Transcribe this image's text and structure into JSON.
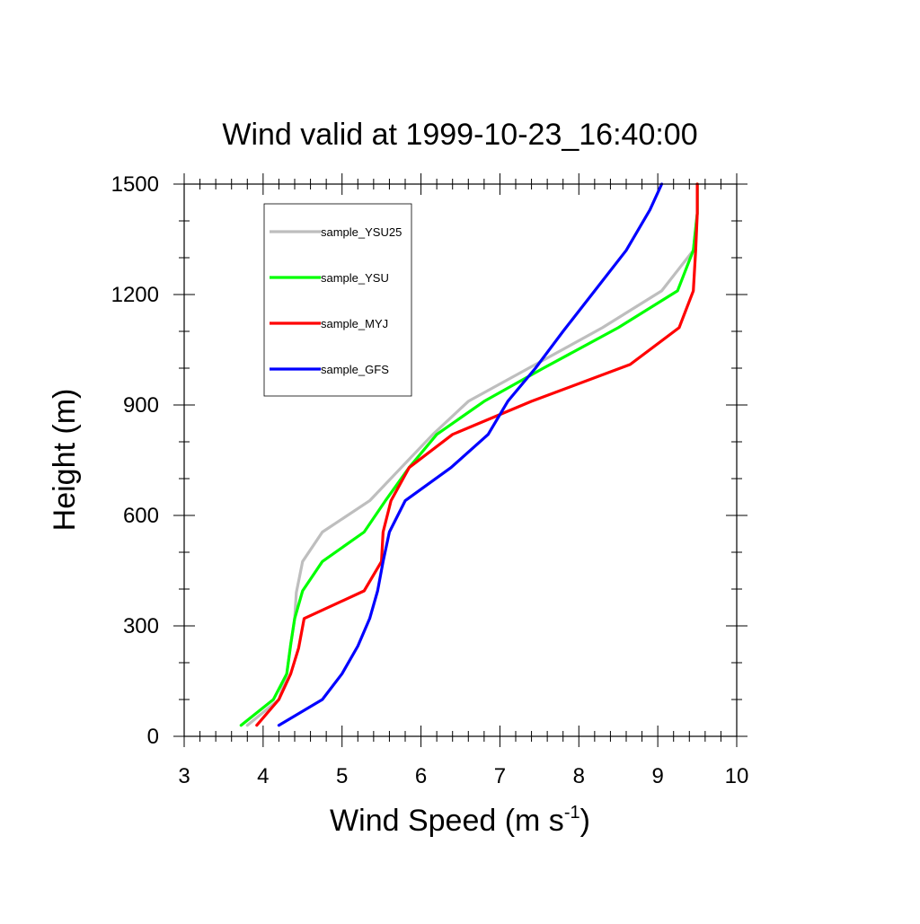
{
  "chart_data": {
    "type": "line",
    "title": "Wind valid at 1999-10-23_16:40:00",
    "xlabel": {
      "main": "Wind Speed (m s",
      "sup": "-1",
      "close": ")"
    },
    "ylabel": "Height (m)",
    "xlim": [
      3,
      10
    ],
    "ylim": [
      0,
      1500
    ],
    "x_major_ticks": [
      3,
      4,
      5,
      6,
      7,
      8,
      9,
      10
    ],
    "y_major_ticks": [
      0,
      300,
      600,
      900,
      1200,
      1500
    ],
    "legend_position": "top-left",
    "grid": false,
    "series": [
      {
        "name": "sample_YSU25",
        "color": "#bebebe",
        "points": [
          [
            3.8,
            30
          ],
          [
            4.2,
            100
          ],
          [
            4.3,
            170
          ],
          [
            4.35,
            250
          ],
          [
            4.4,
            320
          ],
          [
            4.42,
            390
          ],
          [
            4.5,
            475
          ],
          [
            4.75,
            555
          ],
          [
            5.35,
            640
          ],
          [
            5.75,
            730
          ],
          [
            6.15,
            820
          ],
          [
            6.6,
            910
          ],
          [
            7.45,
            1010
          ],
          [
            8.3,
            1110
          ],
          [
            9.05,
            1210
          ],
          [
            9.45,
            1320
          ],
          [
            9.5,
            1420
          ],
          [
            9.5,
            1500
          ]
        ]
      },
      {
        "name": "sample_YSU",
        "color": "#00ff00",
        "points": [
          [
            3.72,
            30
          ],
          [
            4.13,
            100
          ],
          [
            4.3,
            170
          ],
          [
            4.35,
            250
          ],
          [
            4.4,
            320
          ],
          [
            4.5,
            395
          ],
          [
            4.75,
            475
          ],
          [
            5.28,
            555
          ],
          [
            5.55,
            640
          ],
          [
            5.85,
            730
          ],
          [
            6.2,
            820
          ],
          [
            6.8,
            910
          ],
          [
            7.55,
            1000
          ],
          [
            8.5,
            1110
          ],
          [
            9.25,
            1210
          ],
          [
            9.45,
            1320
          ],
          [
            9.5,
            1420
          ],
          [
            9.5,
            1500
          ]
        ]
      },
      {
        "name": "sample_MYJ",
        "color": "#ff0000",
        "points": [
          [
            3.92,
            30
          ],
          [
            4.2,
            100
          ],
          [
            4.35,
            170
          ],
          [
            4.45,
            240
          ],
          [
            4.52,
            320
          ],
          [
            5.28,
            395
          ],
          [
            5.5,
            475
          ],
          [
            5.52,
            555
          ],
          [
            5.62,
            640
          ],
          [
            5.85,
            730
          ],
          [
            6.4,
            820
          ],
          [
            7.4,
            910
          ],
          [
            8.65,
            1010
          ],
          [
            9.27,
            1110
          ],
          [
            9.45,
            1210
          ],
          [
            9.48,
            1320
          ],
          [
            9.5,
            1420
          ],
          [
            9.5,
            1500
          ]
        ]
      },
      {
        "name": "sample_GFS",
        "color": "#0000ff",
        "points": [
          [
            4.2,
            30
          ],
          [
            4.75,
            100
          ],
          [
            5.0,
            170
          ],
          [
            5.2,
            245
          ],
          [
            5.35,
            320
          ],
          [
            5.45,
            395
          ],
          [
            5.52,
            475
          ],
          [
            5.6,
            555
          ],
          [
            5.8,
            640
          ],
          [
            6.38,
            730
          ],
          [
            6.85,
            820
          ],
          [
            7.1,
            910
          ],
          [
            7.45,
            1000
          ],
          [
            7.8,
            1100
          ],
          [
            8.2,
            1210
          ],
          [
            8.6,
            1320
          ],
          [
            8.9,
            1430
          ],
          [
            9.05,
            1500
          ]
        ]
      }
    ]
  }
}
